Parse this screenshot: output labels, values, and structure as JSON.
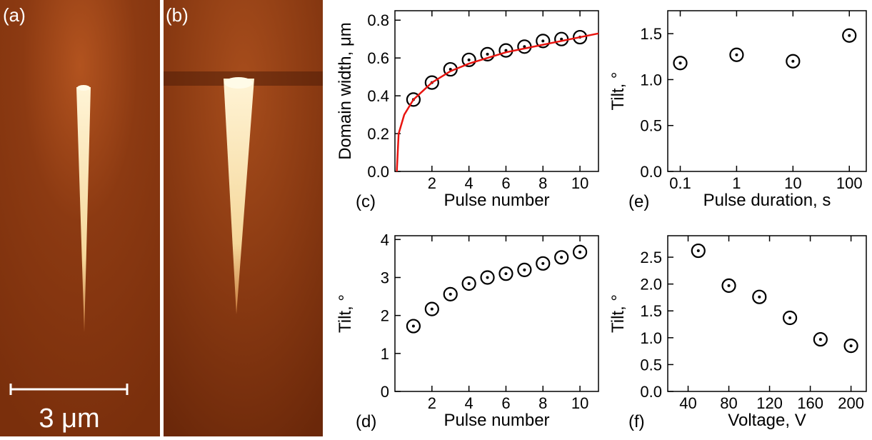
{
  "panels": {
    "a": {
      "label": "(a)",
      "scale_bar": "3 μm"
    },
    "b": {
      "label": "(b)"
    }
  },
  "chart_data": [
    {
      "type": "scatter",
      "panel_label": "(c)",
      "xlabel": "Pulse number",
      "ylabel": "Domain width, μm",
      "x": [
        1,
        2,
        3,
        4,
        5,
        6,
        7,
        8,
        9,
        10
      ],
      "series": [
        {
          "color": "#000000",
          "values": [
            0.38,
            0.47,
            0.54,
            0.59,
            0.62,
            0.64,
            0.66,
            0.69,
            0.7,
            0.71
          ]
        },
        {
          "type": "line",
          "color": "#e8140f",
          "x": [
            0.1,
            0.2,
            0.5,
            1,
            2,
            3,
            4,
            6,
            8,
            11
          ],
          "values": [
            0,
            0.2,
            0.3,
            0.38,
            0.47,
            0.53,
            0.57,
            0.63,
            0.67,
            0.73
          ]
        }
      ],
      "xlim": [
        0,
        11
      ],
      "xticks": [
        2,
        4,
        6,
        8,
        10
      ],
      "ylim": [
        0,
        0.85
      ],
      "yticks": [
        {
          "value": 0,
          "label": "0.0"
        },
        0.2,
        0.4,
        0.6,
        0.8
      ]
    },
    {
      "type": "scatter",
      "panel_label": "(e)",
      "xlabel": "Pulse duration, s",
      "ylabel": "Tilt, °",
      "xscale": "log",
      "x": [
        0.1,
        1,
        10,
        100
      ],
      "series": [
        {
          "color": "#000000",
          "values": [
            1.18,
            1.27,
            1.2,
            1.48
          ]
        }
      ],
      "xlim": [
        0.06,
        200
      ],
      "xticks": [
        0.1,
        1,
        10,
        100
      ],
      "ylim": [
        0,
        1.75
      ],
      "yticks": [
        {
          "value": 0,
          "label": "0.0"
        },
        0.5,
        {
          "value": 1,
          "label": "1.0"
        },
        1.5
      ]
    },
    {
      "type": "scatter",
      "panel_label": "(d)",
      "xlabel": "Pulse number",
      "ylabel": "Tilt, °",
      "x": [
        1,
        2,
        3,
        4,
        5,
        6,
        7,
        8,
        9,
        10
      ],
      "series": [
        {
          "color": "#000000",
          "values": [
            1.72,
            2.17,
            2.56,
            2.84,
            3.0,
            3.1,
            3.2,
            3.37,
            3.53,
            3.67
          ]
        }
      ],
      "xlim": [
        0,
        11
      ],
      "xticks": [
        2,
        4,
        6,
        8,
        10
      ],
      "ylim": [
        0,
        4.1
      ],
      "yticks": [
        0,
        1,
        2,
        3,
        4
      ]
    },
    {
      "type": "scatter",
      "panel_label": "(f)",
      "xlabel": "Voltage, V",
      "ylabel": "Tilt, °",
      "x": [
        50,
        80,
        110,
        140,
        170,
        200
      ],
      "series": [
        {
          "color": "#000000",
          "values": [
            2.62,
            1.97,
            1.76,
            1.37,
            0.97,
            0.85
          ]
        }
      ],
      "xlim": [
        20,
        215
      ],
      "xticks": [
        40,
        80,
        120,
        160,
        200
      ],
      "ylim": [
        0,
        2.9
      ],
      "yticks": [
        {
          "value": 0,
          "label": "0.0"
        },
        0.5,
        {
          "value": 1,
          "label": "1.0"
        },
        1.5,
        {
          "value": 2,
          "label": "2.0"
        },
        2.5
      ]
    }
  ]
}
